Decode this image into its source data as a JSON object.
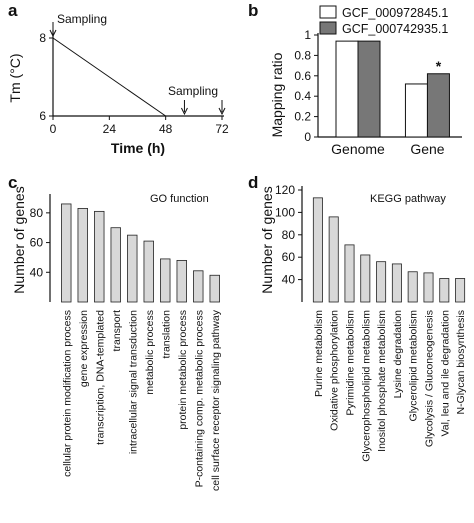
{
  "panels": {
    "a": {
      "letter": "a",
      "ylabel": "Tm (°C)",
      "xlabel": "Time (h)",
      "annotations": [
        "Sampling",
        "Sampling"
      ]
    },
    "b": {
      "letter": "b",
      "ylabel": "Mapping ratio",
      "significance": "*"
    },
    "c": {
      "letter": "c",
      "title": "GO function",
      "ylabel": "Number of genes"
    },
    "d": {
      "letter": "d",
      "title": "KEGG pathway",
      "ylabel": "Number of genes"
    }
  },
  "chart_data": [
    {
      "panel": "a",
      "type": "line",
      "xlabel": "Time (h)",
      "ylabel": "Tm (°C)",
      "xlim": [
        0,
        72
      ],
      "ylim": [
        6,
        8
      ],
      "xticks": [
        0,
        24,
        48,
        72
      ],
      "yticks": [
        6,
        8
      ],
      "series": [
        {
          "x": [
            0,
            48
          ],
          "y": [
            8,
            6
          ]
        }
      ],
      "sampling_times": [
        0,
        56,
        72
      ],
      "annotations": [
        {
          "text": "Sampling",
          "x": 0
        },
        {
          "text": "Sampling",
          "x": 64
        }
      ]
    },
    {
      "panel": "b",
      "type": "bar",
      "ylabel": "Mapping ratio",
      "ylim": [
        0,
        1
      ],
      "yticks": [
        0,
        0.2,
        0.4,
        0.6,
        0.8,
        1
      ],
      "categories": [
        "Genome",
        "Gene"
      ],
      "legend_position": "top",
      "series": [
        {
          "name": "GCF_000972845.1",
          "color": "#ffffff",
          "values": [
            0.94,
            0.52
          ]
        },
        {
          "name": "GCF_000742935.1",
          "color": "#777777",
          "values": [
            0.94,
            0.62
          ]
        }
      ],
      "annotation": {
        "text": "*",
        "category": "Gene",
        "series": "GCF_000742935.1"
      }
    },
    {
      "panel": "c",
      "type": "bar",
      "title": "GO function",
      "ylabel": "Number of genes",
      "ylim": [
        20,
        90
      ],
      "yticks": [
        40,
        60,
        80
      ],
      "color": "#d8d8d8",
      "categories": [
        "cellular protein modification process",
        "gene expression",
        "transcription, DNA-templated",
        "transport",
        "intracellular signal transduction",
        "metabolic process",
        "translation",
        "protein metabolic process",
        "P-containing comp. metabolic process",
        "cell surface receptor signaling pathway"
      ],
      "values": [
        86,
        83,
        81,
        70,
        65,
        61,
        49,
        48,
        41,
        38
      ]
    },
    {
      "panel": "d",
      "type": "bar",
      "title": "KEGG pathway",
      "ylabel": "Number of genes",
      "ylim": [
        20,
        120
      ],
      "yticks": [
        40,
        60,
        80,
        100,
        120
      ],
      "color": "#d8d8d8",
      "categories": [
        "Purine metabolism",
        "Oxidative phosphorylation",
        "Pyrimidine metabolism",
        "Glycerophospholipid metabolism",
        "Inositol phosphate metabolism",
        "Lysine degradation",
        "Glycerolipid metabolism",
        "Glycolysis / Gluconeogenesis",
        "Val, leu and ile degradation",
        "N-Glycan biosynthesis"
      ],
      "values": [
        113,
        96,
        71,
        62,
        56,
        54,
        47,
        46,
        41,
        41
      ]
    }
  ]
}
